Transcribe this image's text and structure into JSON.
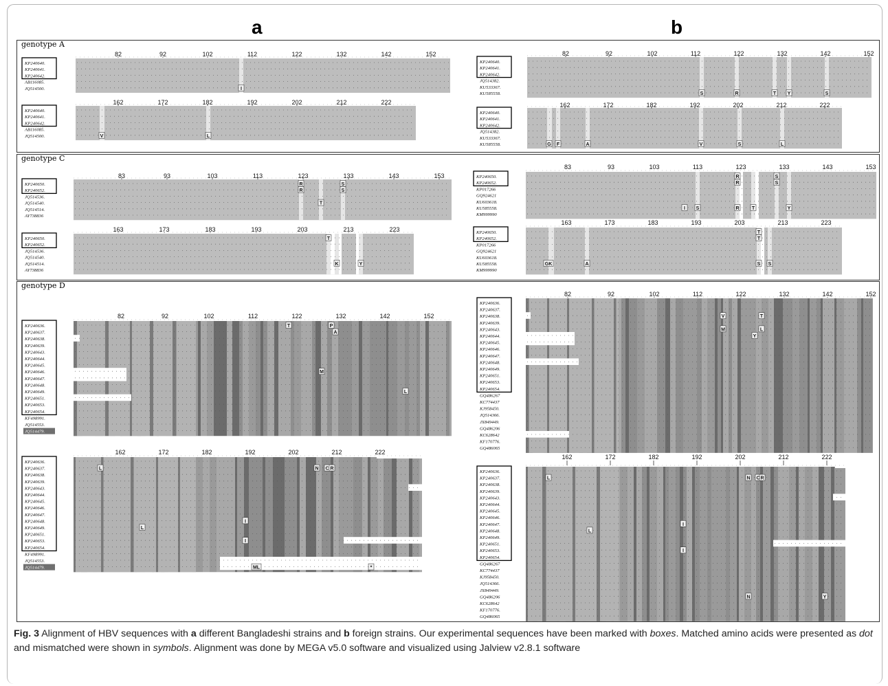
{
  "figure": {
    "panels": [
      {
        "id": "a",
        "label": "a"
      },
      {
        "id": "b",
        "label": "b"
      }
    ],
    "caption": {
      "label": "Fig. 3",
      "segments": [
        {
          "t": "  Alignment of HBV sequences with ",
          "s": ""
        },
        {
          "t": "a",
          "s": "b"
        },
        {
          "t": " different Bangladeshi strains and ",
          "s": ""
        },
        {
          "t": "b",
          "s": "b"
        },
        {
          "t": " foreign strains. Our experimental sequences have been marked with ",
          "s": ""
        },
        {
          "t": "boxes",
          "s": "i"
        },
        {
          "t": ". Matched amino acids were presented as ",
          "s": ""
        },
        {
          "t": "dot",
          "s": "i"
        },
        {
          "t": " and mismatched were shown in ",
          "s": ""
        },
        {
          "t": "symbols",
          "s": "i"
        },
        {
          "t": ". Alignment was done by MEGA v5.0 software and visualized using Jalview v2.8.1 software",
          "s": ""
        }
      ]
    },
    "sections": [
      {
        "name": "genotype A",
        "label": "genotype A"
      },
      {
        "name": "genotype C",
        "label": "genotype C"
      },
      {
        "name": "genotype D",
        "label": "genotype D"
      }
    ],
    "blocks": [
      {
        "id": "Aa1",
        "ticks": [
          "82",
          "92",
          "102",
          "112",
          "122",
          "132",
          "142",
          "152"
        ],
        "seqs": [
          "KP240640.",
          "KP240641.",
          "KP240642.",
          "AB116085.",
          "JQ514500."
        ],
        "boxed": 3,
        "marks": [
          {
            "col": "S",
            "row": 4,
            "ch": "I"
          }
        ]
      },
      {
        "id": "Aa2",
        "ticks": [
          "162",
          "172",
          "182",
          "192",
          "202",
          "212",
          "222"
        ],
        "seqs": [
          "KP240640.",
          "KP240641.",
          "KP240642.",
          "AB116085.",
          "JQ514500."
        ],
        "boxed": 3,
        "marks": [
          {
            "col": "v",
            "row": 4,
            "ch": "V"
          },
          {
            "col": "l",
            "row": 4,
            "ch": "L"
          }
        ]
      },
      {
        "id": "Ab1",
        "ticks": [
          "82",
          "92",
          "102",
          "112",
          "122",
          "132",
          "142",
          "152"
        ],
        "seqs": [
          "KP240640.",
          "KP240641.",
          "KP240642.",
          "JQ514382.",
          "KU533367.",
          "KU585558."
        ],
        "boxed": 3,
        "marks": [
          {
            "ch": "S"
          },
          {
            "ch": "R"
          },
          {
            "ch": "T"
          },
          {
            "ch": "Y"
          },
          {
            "ch": "S"
          }
        ]
      },
      {
        "id": "Ab2",
        "ticks": [
          "162",
          "172",
          "182",
          "192",
          "202",
          "212",
          "222"
        ],
        "seqs": [
          "KP240640.",
          "KP240641.",
          "KP240642.",
          "JQ514382.",
          "KU533367.",
          "KU585558."
        ],
        "boxed": 3,
        "marks": [
          {
            "ch": "G"
          },
          {
            "ch": "F"
          },
          {
            "ch": "A"
          },
          {
            "ch": "V"
          },
          {
            "ch": "S"
          },
          {
            "ch": "L"
          }
        ]
      },
      {
        "id": "Ca1",
        "ticks": [
          "83",
          "93",
          "103",
          "113",
          "123",
          "133",
          "143",
          "153"
        ],
        "seqs": [
          "KP240650.",
          "KP240652.",
          "JQ514536.",
          "JQ514540.",
          "JQ514514.",
          "AY738836"
        ],
        "boxed": 2,
        "marks": [
          {
            "ch": "R"
          },
          {
            "ch": "R"
          },
          {
            "ch": "T"
          },
          {
            "ch": "S"
          },
          {
            "ch": "S"
          }
        ]
      },
      {
        "id": "Ca2",
        "ticks": [
          "163",
          "173",
          "183",
          "193",
          "203",
          "213",
          "223"
        ],
        "seqs": [
          "KP240650.",
          "KP240652.",
          "JQ514536.",
          "JQ514540.",
          "JQ514514.",
          "AY738836"
        ],
        "boxed": 2,
        "marks": [
          {
            "ch": "T"
          },
          {
            "ch": "K"
          },
          {
            "ch": "Y"
          }
        ]
      },
      {
        "id": "Cb1",
        "ticks": [
          "83",
          "93",
          "103",
          "113",
          "123",
          "133",
          "143",
          "153"
        ],
        "seqs": [
          "KP240650.",
          "KP240652.",
          "KP017266",
          "GQ924621",
          "KU603618.",
          "KU585558.",
          "KM999990"
        ],
        "boxed": 2,
        "marks": [
          {
            "ch": "R"
          },
          {
            "ch": "R"
          },
          {
            "ch": "S"
          },
          {
            "ch": "S"
          },
          {
            "ch": "I"
          },
          {
            "ch": "S"
          },
          {
            "ch": "R"
          },
          {
            "ch": "T"
          },
          {
            "ch": "Y"
          }
        ]
      },
      {
        "id": "Cb2",
        "ticks": [
          "163",
          "173",
          "183",
          "193",
          "203",
          "213",
          "223"
        ],
        "seqs": [
          "KP240650.",
          "KP240652.",
          "KP017266",
          "GQ924621",
          "KU603618.",
          "KU585558.",
          "KM999990"
        ],
        "boxed": 2,
        "marks": [
          {
            "ch": "T"
          },
          {
            "ch": "T"
          },
          {
            "ch": "GK"
          },
          {
            "ch": "A"
          },
          {
            "ch": "S"
          },
          {
            "ch": "S"
          }
        ]
      },
      {
        "id": "Da1",
        "ticks": [
          "82",
          "92",
          "102",
          "112",
          "122",
          "132",
          "142",
          "152"
        ],
        "seqs": [
          "KP240636.",
          "KP240637.",
          "KP240638.",
          "KP240639.",
          "KP240643.",
          "KP240644.",
          "KP240645.",
          "KP240646.",
          "KP240647.",
          "KP240648.",
          "KP240649.",
          "KP240651.",
          "KP240653.",
          "KP240654.",
          "KF498991.",
          "JQ514553.",
          "JQ514479."
        ],
        "boxed": 14,
        "highlight": 16,
        "marks": [
          {
            "ch": "T"
          },
          {
            "ch": "P"
          },
          {
            "ch": "A"
          },
          {
            "ch": "M"
          },
          {
            "ch": "L"
          }
        ]
      },
      {
        "id": "Da2",
        "ticks": [
          "162",
          "172",
          "182",
          "192",
          "202",
          "212",
          "222"
        ],
        "seqs": [
          "KP240636.",
          "KP240637.",
          "KP240638.",
          "KP240639.",
          "KP240643.",
          "KP240644.",
          "KP240645.",
          "KP240646.",
          "KP240647.",
          "KP240648.",
          "KP240649.",
          "KP240651.",
          "KP240653.",
          "KP240654.",
          "KF498991.",
          "JQ514553.",
          "JQ514479."
        ],
        "boxed": 14,
        "highlight": 16,
        "marks": [
          {
            "ch": "L"
          },
          {
            "ch": "N"
          },
          {
            "ch": "C"
          },
          {
            "ch": "R"
          },
          {
            "ch": "L"
          },
          {
            "ch": "I"
          },
          {
            "ch": "I"
          },
          {
            "ch": "ML"
          },
          {
            "ch": "*"
          }
        ]
      },
      {
        "id": "Db1",
        "ticks": [
          "82",
          "92",
          "102",
          "112",
          "122",
          "132",
          "142",
          "152"
        ],
        "seqs": [
          "KP240636.",
          "KP240637.",
          "KP240638.",
          "KP240639.",
          "KP240643.",
          "KP240644.",
          "KP240645.",
          "KP240646.",
          "KP240647.",
          "KP240648.",
          "KP240649.",
          "KP240651.",
          "KP240653.",
          "KP240654.",
          "GQ486267",
          "KC774437",
          "KJ958450.",
          "JQ514366.",
          "JX849449.",
          "GQ486206",
          "KC628642",
          "KF170776.",
          "GQ486065"
        ],
        "boxed": 14,
        "marks": [
          {
            "ch": "V"
          },
          {
            "ch": "T"
          },
          {
            "ch": "M"
          },
          {
            "ch": "L"
          },
          {
            "ch": "Y"
          }
        ]
      },
      {
        "id": "Db2",
        "ticks": [
          "162",
          "172",
          "182",
          "192",
          "202",
          "212",
          "222"
        ],
        "seqs": [
          "KP240636.",
          "KP240637.",
          "KP240638.",
          "KP240639.",
          "KP240643.",
          "KP240644.",
          "KP240645.",
          "KP240646.",
          "KP240647.",
          "KP240648.",
          "KP240649.",
          "KP240651.",
          "KP240653.",
          "KP240654.",
          "GQ486267",
          "KC774437",
          "KJ958450.",
          "JQ514366.",
          "JX849449.",
          "GQ486206",
          "KC628642",
          "KF170776.",
          "GQ486065"
        ],
        "boxed": 14,
        "marks": [
          {
            "ch": "L"
          },
          {
            "ch": "N"
          },
          {
            "ch": "C"
          },
          {
            "ch": "R"
          },
          {
            "ch": "L"
          },
          {
            "ch": "I"
          },
          {
            "ch": "I"
          },
          {
            "ch": "N"
          },
          {
            "ch": "Y"
          }
        ]
      }
    ]
  }
}
